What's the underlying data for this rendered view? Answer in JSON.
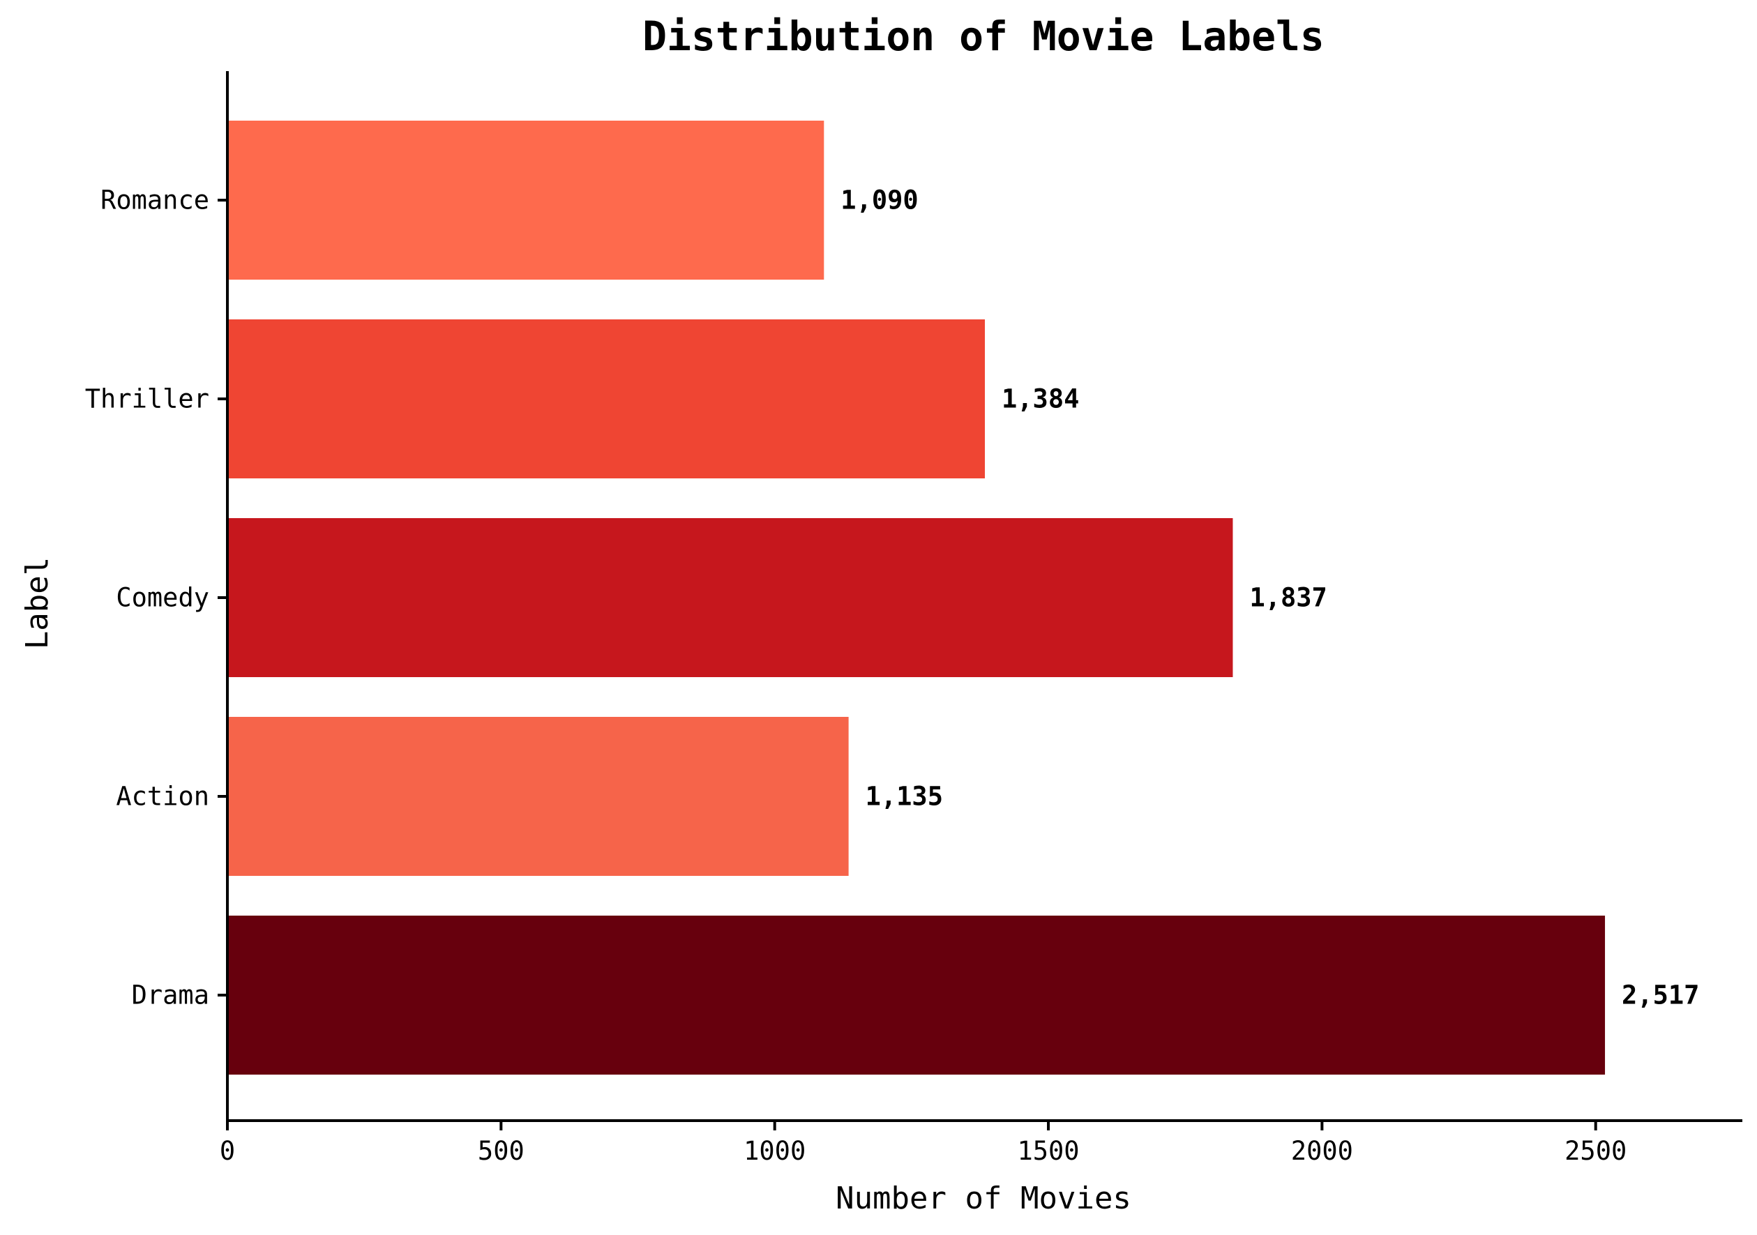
{
  "chart_data": {
    "type": "bar",
    "orientation": "horizontal",
    "title": "Distribution of Movie Labels",
    "xlabel": "Number of Movies",
    "ylabel": "Label",
    "categories": [
      "Drama",
      "Action",
      "Comedy",
      "Thriller",
      "Romance"
    ],
    "values": [
      2517,
      1135,
      1837,
      1384,
      1090
    ],
    "value_labels": [
      "2,517",
      "1,135",
      "1,837",
      "1,384",
      "1,090"
    ],
    "colors": [
      "#67000d",
      "#f6644a",
      "#c6171d",
      "#ef4533",
      "#fe6a4d"
    ],
    "xlim": [
      0,
      2768
    ],
    "xticks": [
      0,
      500,
      1000,
      1500,
      2000,
      2500
    ],
    "xtick_labels": [
      "0",
      "500",
      "1000",
      "1500",
      "2000",
      "2500"
    ],
    "grid": false
  }
}
